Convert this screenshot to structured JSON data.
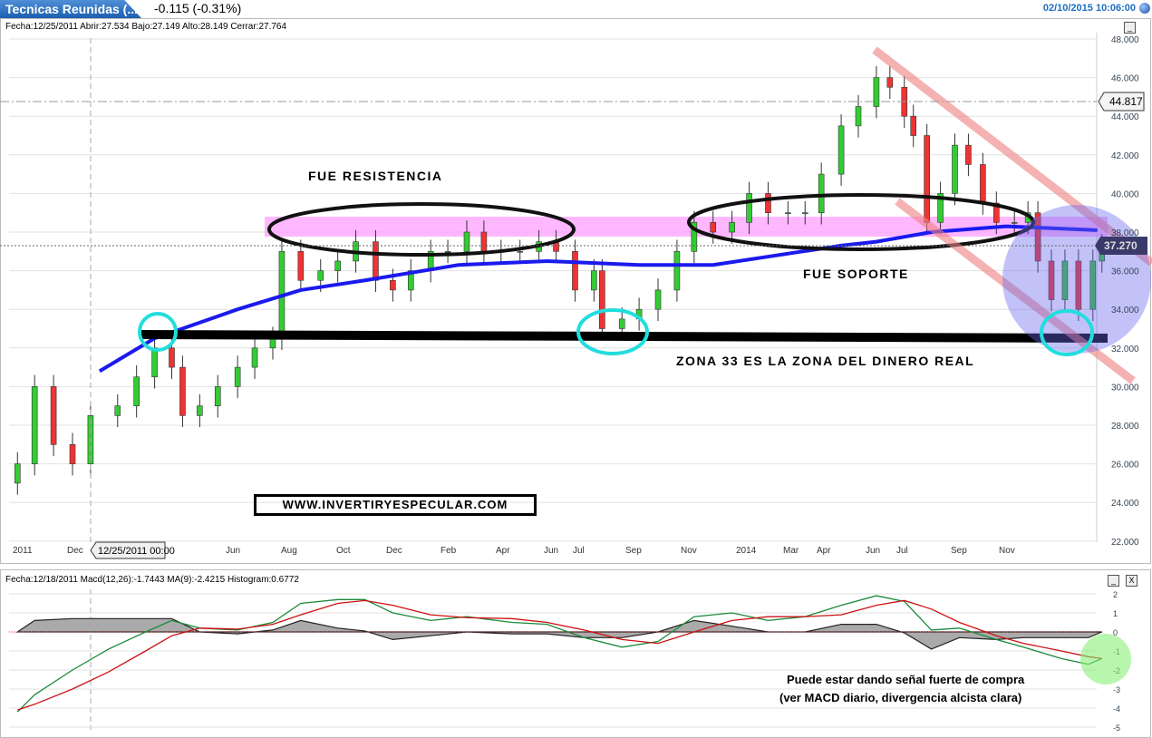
{
  "header": {
    "tab_title": "Tecnicas Reunidas (...",
    "change": "-0.115 (-0.31%)",
    "datetime": "02/10/2015 10:06:00"
  },
  "price_panel": {
    "info": "Fecha:12/25/2011 Abrir:27.534 Bajo:27.149 Alto:28.149 Cerrar:27.764",
    "cursor_label": "12/25/2011 00:00",
    "minimize_label": "_"
  },
  "macd_panel": {
    "info": "Fecha:12/18/2011 Macd(12,26):-1.7443 MA(9):-2.4215 Histogram:0.6772",
    "minimize_label": "_",
    "close_label": "X"
  },
  "annotations": {
    "resistance": "FUE RESISTENCIA",
    "support": "FUE SOPORTE",
    "zone": "ZONA 33 ES LA ZONA DEL DINERO REAL",
    "watermark": "WWW.INVERTIRYESPECULAR.COM",
    "macd_note_1": "Puede estar dando señal fuerte de compra",
    "macd_note_2": "(ver MACD diario, divergencia alcista clara)"
  },
  "colors": {
    "up": "#33cc33",
    "down": "#ee3333",
    "ma": "#1a1aee",
    "macd": "#1a8a3a",
    "signal": "#cc1111",
    "histogram": "#aaaaaa",
    "resistance_band": "#ff99ff",
    "accent": "#1f6fc0"
  },
  "chart_data": [
    {
      "type": "candlestick",
      "ylim": [
        22,
        48
      ],
      "yticks": [
        "48.000",
        "46.000",
        "44.000",
        "42.000",
        "40.000",
        "38.000",
        "36.000",
        "34.000",
        "32.000",
        "30.000",
        "28.000",
        "26.000",
        "24.000",
        "22.000"
      ],
      "xticks": [
        "2011",
        "Dec",
        "Jun",
        "Aug",
        "Oct",
        "Dec",
        "Feb",
        "Apr",
        "Jun",
        "Jul",
        "Sep",
        "Nov",
        "2014",
        "Mar",
        "Apr",
        "Jun",
        "Jul",
        "Sep",
        "Nov"
      ],
      "price_labels": {
        "reference": "44.817",
        "last": "37.270"
      },
      "candles": {
        "dates": [
          "2011-10-01",
          "2011-10-20",
          "2011-11-10",
          "2011-12-01",
          "2011-12-21",
          "2012-01-20",
          "2012-02-10",
          "2012-03-01",
          "2012-03-20",
          "2012-04-01",
          "2012-04-20",
          "2012-05-10",
          "2012-06-01",
          "2012-06-20",
          "2012-07-10",
          "2012-07-20",
          "2012-08-10",
          "2012-09-01",
          "2012-09-20",
          "2012-10-10",
          "2012-11-01",
          "2012-11-20",
          "2012-12-10",
          "2013-01-01",
          "2013-01-20",
          "2013-02-10",
          "2013-03-01",
          "2013-03-20",
          "2013-04-10",
          "2013-05-01",
          "2013-05-20",
          "2013-06-10",
          "2013-07-01",
          "2013-07-10",
          "2013-08-01",
          "2013-08-20",
          "2013-09-10",
          "2013-10-01",
          "2013-10-20",
          "2013-11-10",
          "2013-12-01",
          "2013-12-20",
          "2014-01-10",
          "2014-02-01",
          "2014-02-20",
          "2014-03-10",
          "2014-04-01",
          "2014-04-20",
          "2014-05-10",
          "2014-05-25",
          "2014-06-10",
          "2014-06-20",
          "2014-07-05",
          "2014-07-20",
          "2014-08-05",
          "2014-08-20",
          "2014-09-05",
          "2014-09-20",
          "2014-10-10",
          "2014-10-25",
          "2014-11-05",
          "2014-11-20",
          "2014-12-05",
          "2014-12-20",
          "2015-01-05",
          "2015-01-15"
        ],
        "close": [
          26,
          30,
          27,
          26,
          28.5,
          29,
          30.5,
          32,
          31,
          28.5,
          29,
          30,
          31,
          32,
          32.5,
          37,
          35.5,
          36,
          36.5,
          37.5,
          35.5,
          35,
          36,
          37,
          37,
          38,
          37,
          37,
          37,
          37.5,
          37,
          35,
          36,
          33,
          33.5,
          34,
          35,
          37,
          38.5,
          38,
          38.5,
          40,
          39,
          39,
          39,
          41,
          43.5,
          44.5,
          46,
          45.5,
          44,
          43,
          38.5,
          40,
          42.5,
          41.5,
          39.5,
          38.5,
          38.5,
          39,
          36.5,
          34.5,
          36.5,
          34,
          36.5,
          37.3
        ]
      },
      "ma": {
        "dates": [
          "2011-12-31",
          "2012-03-01",
          "2012-06-01",
          "2012-08-10",
          "2012-10-20",
          "2013-02-01",
          "2013-05-10",
          "2013-08-20",
          "2013-11-10",
          "2014-01-20",
          "2014-04-01",
          "2014-05-10",
          "2014-07-10",
          "2014-10-01",
          "2015-01-10"
        ],
        "values": [
          30.8,
          32.5,
          34,
          35,
          35.5,
          36.3,
          36.5,
          36.3,
          36.3,
          36.8,
          37.3,
          37.5,
          38,
          38.3,
          38.1
        ]
      }
    },
    {
      "type": "line",
      "ylim": [
        -5,
        2
      ],
      "yticks": [
        "2",
        "1",
        "0",
        "-1",
        "-2",
        "-3",
        "-4",
        "-5"
      ],
      "dates": [
        "2011-10-01",
        "2011-10-20",
        "2011-12-01",
        "2012-01-10",
        "2012-02-20",
        "2012-03-20",
        "2012-04-20",
        "2012-06-01",
        "2012-07-10",
        "2012-08-10",
        "2012-09-20",
        "2012-10-20",
        "2012-11-20",
        "2013-01-01",
        "2013-02-10",
        "2013-04-01",
        "2013-05-10",
        "2013-06-20",
        "2013-08-01",
        "2013-09-10",
        "2013-10-20",
        "2013-12-01",
        "2014-01-10",
        "2014-02-20",
        "2014-04-01",
        "2014-05-10",
        "2014-06-10",
        "2014-07-10",
        "2014-08-10",
        "2014-09-20",
        "2014-10-20",
        "2014-12-01",
        "2014-12-31",
        "2015-01-15"
      ],
      "series": [
        {
          "name": "Macd(12,26)",
          "values": [
            -4.2,
            -3.3,
            -2.0,
            -0.9,
            0.0,
            0.6,
            0.2,
            0.1,
            0.5,
            1.5,
            1.7,
            1.7,
            1.0,
            0.6,
            0.8,
            0.5,
            0.4,
            -0.3,
            -0.8,
            -0.5,
            0.8,
            1.0,
            0.6,
            0.8,
            1.4,
            1.9,
            1.6,
            0.1,
            0.2,
            -0.4,
            -0.8,
            -1.4,
            -1.7,
            -1.4
          ]
        },
        {
          "name": "MA(9)",
          "values": [
            -4.1,
            -3.8,
            -3.0,
            -2.1,
            -1.0,
            -0.2,
            0.2,
            0.15,
            0.4,
            0.9,
            1.5,
            1.65,
            1.4,
            0.9,
            0.75,
            0.7,
            0.5,
            0.1,
            -0.4,
            -0.6,
            0.0,
            0.6,
            0.8,
            0.8,
            0.9,
            1.4,
            1.65,
            1.2,
            0.5,
            -0.2,
            -0.6,
            -1.0,
            -1.3,
            -1.4
          ]
        },
        {
          "name": "Histogram",
          "values": [
            0,
            0.6,
            0.7,
            0.7,
            0.7,
            0.7,
            0,
            -0.1,
            0.1,
            0.6,
            0.2,
            0.05,
            -0.4,
            -0.2,
            0,
            -0.1,
            -0.1,
            -0.3,
            -0.3,
            0,
            0.6,
            0.3,
            0,
            0,
            0.4,
            0.4,
            -0.05,
            -0.9,
            -0.3,
            -0.4,
            -0.3,
            -0.3,
            -0.3,
            0
          ]
        }
      ]
    }
  ]
}
